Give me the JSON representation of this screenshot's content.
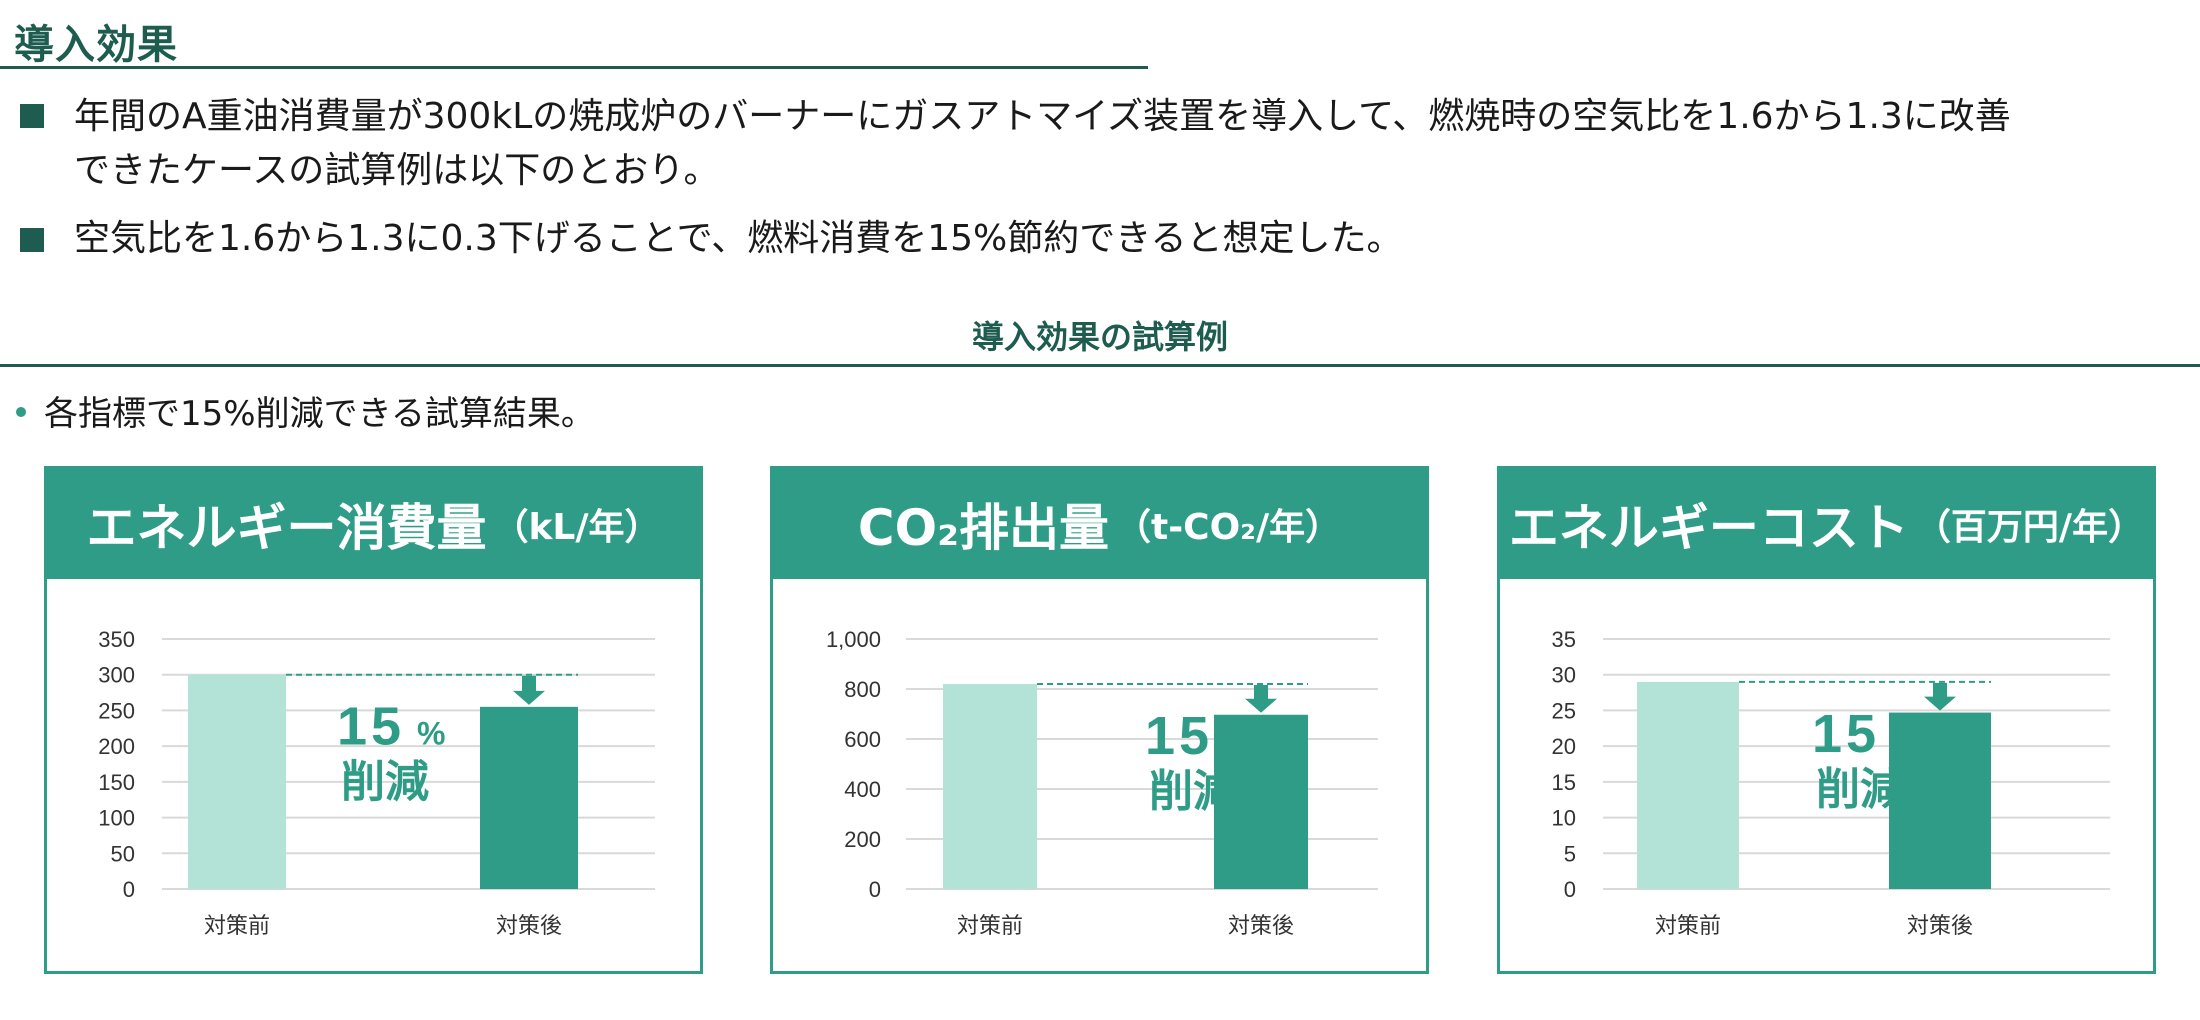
{
  "header": {
    "title": "導入効果"
  },
  "bullets": [
    {
      "line1": "年間のA重油消費量が300kLの焼成炉のバーナーにガスアトマイズ装置を導入して、燃焼時の空気比を1.6から1.3に改善",
      "line2": "できたケースの試算例は以下のとおり。"
    },
    {
      "line1": "空気比を1.6から1.3に0.3下げることで、燃料消費を15%節約できると想定した。"
    }
  ],
  "section": {
    "title": "導入効果の試算例",
    "sub_bullet": "各指標で15%削減できる試算結果。"
  },
  "colors": {
    "accent": "#2e9c86",
    "dark": "#1d5c4f",
    "before": "#b2e3d6",
    "after": "#2e9c86"
  },
  "panels": [
    {
      "title": "エネルギー消費量",
      "unit": "（kL/年）",
      "badge_pct": "15",
      "badge_sym": "%",
      "badge_label": "削減"
    },
    {
      "title": "CO₂排出量",
      "unit": "（t-CO₂/年）",
      "badge_pct": "15",
      "badge_sym": "%",
      "badge_label": "削減"
    },
    {
      "title": "エネルギーコスト",
      "unit": "（百万円/年）",
      "badge_pct": "15",
      "badge_sym": "%",
      "badge_label": "削減"
    }
  ],
  "chart_data": [
    {
      "type": "bar",
      "categories": [
        "対策前",
        "対策後"
      ],
      "values": [
        300,
        255
      ],
      "ylim": [
        0,
        350
      ],
      "yticks": [
        0,
        50,
        100,
        150,
        200,
        250,
        300,
        350
      ],
      "ytick_labels": [
        "0",
        "50",
        "100",
        "150",
        "200",
        "250",
        "300",
        "350"
      ],
      "grid": true
    },
    {
      "type": "bar",
      "categories": [
        "対策前",
        "対策後"
      ],
      "values": [
        820,
        697
      ],
      "ylim": [
        0,
        1000
      ],
      "yticks": [
        0,
        200,
        400,
        600,
        800,
        1000
      ],
      "ytick_labels": [
        "0",
        "200",
        "400",
        "600",
        "800",
        "1,000"
      ],
      "grid": true
    },
    {
      "type": "bar",
      "categories": [
        "対策前",
        "対策後"
      ],
      "values": [
        29,
        24.7
      ],
      "ylim": [
        0,
        35
      ],
      "yticks": [
        0,
        5,
        10,
        15,
        20,
        25,
        30,
        35
      ],
      "ytick_labels": [
        "0",
        "5",
        "10",
        "15",
        "20",
        "25",
        "30",
        "35"
      ],
      "grid": true
    }
  ]
}
